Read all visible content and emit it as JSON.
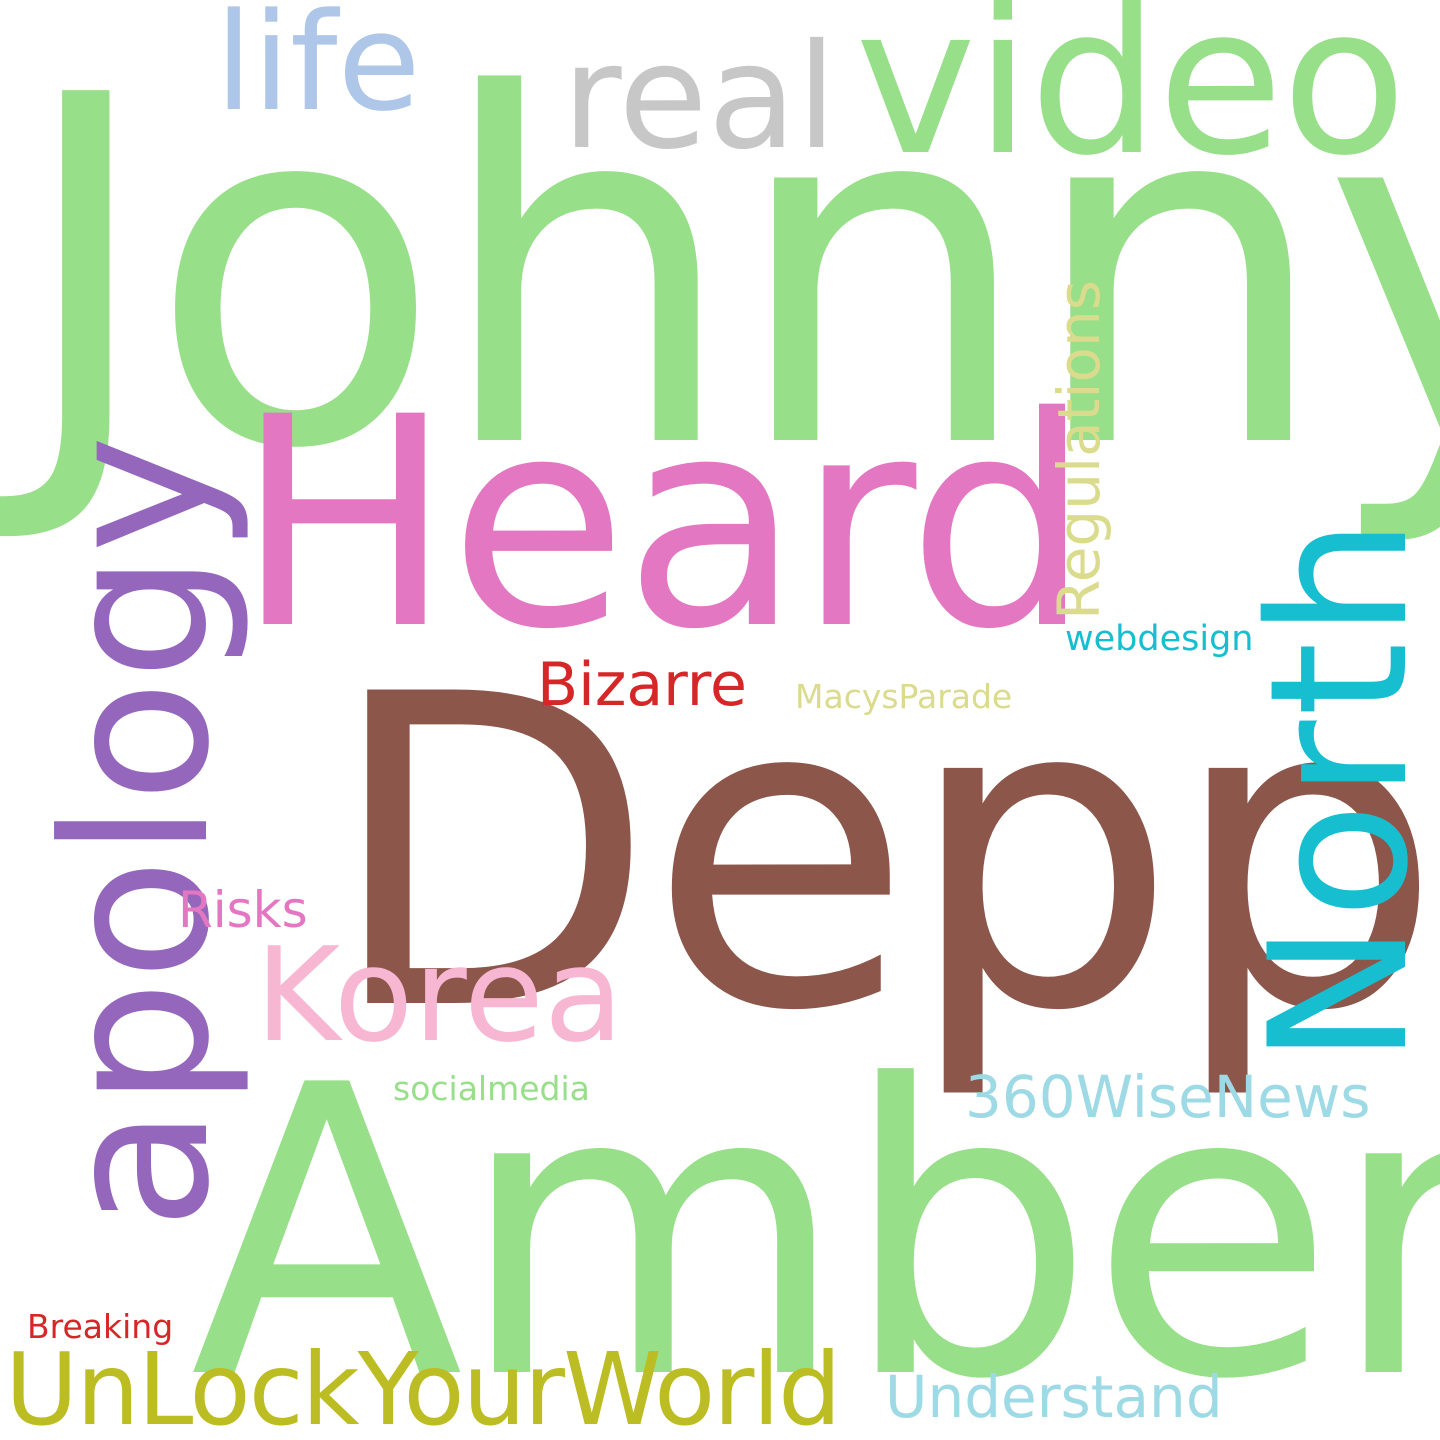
{
  "words": {
    "johnny": {
      "text": "Johnny",
      "color": "#98df8a"
    },
    "depp": {
      "text": "Depp",
      "color": "#8c564b"
    },
    "amber": {
      "text": "Amber",
      "color": "#98df8a"
    },
    "heard": {
      "text": "Heard",
      "color": "#e377c2"
    },
    "video": {
      "text": "video",
      "color": "#98df8a"
    },
    "real": {
      "text": "real",
      "color": "#c7c7c7"
    },
    "life": {
      "text": "life",
      "color": "#aec7e8"
    },
    "apology": {
      "text": "apology",
      "color": "#9467bd"
    },
    "north": {
      "text": "North",
      "color": "#17becf"
    },
    "korea": {
      "text": "Korea",
      "color": "#f7b6d2"
    },
    "regulations": {
      "text": "Regulations",
      "color": "#dbdb8d"
    },
    "unlock": {
      "text": "UnLockYourWorld",
      "color": "#bcbd22"
    },
    "wisenews": {
      "text": "360WiseNews",
      "color": "#9edae5"
    },
    "understand": {
      "text": "Understand",
      "color": "#9edae5"
    },
    "bizarre": {
      "text": "Bizarre",
      "color": "#d62728"
    },
    "risks": {
      "text": "Risks",
      "color": "#e377c2"
    },
    "webdesign": {
      "text": "webdesign",
      "color": "#17becf"
    },
    "macys": {
      "text": "MacysParade",
      "color": "#dbdb8d"
    },
    "social": {
      "text": "socialmedia",
      "color": "#98df8a"
    },
    "breaking": {
      "text": "Breaking",
      "color": "#d62728"
    }
  }
}
